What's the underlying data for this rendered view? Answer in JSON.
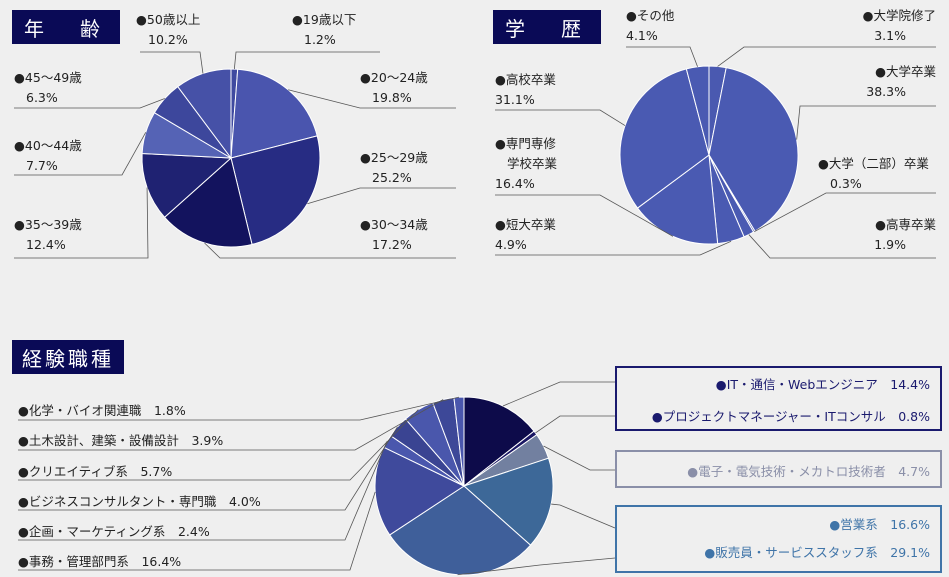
{
  "sections": {
    "age_title": "年　齢",
    "edu_title": "学　歴",
    "job_title": "経験職種"
  },
  "chart_data": [
    {
      "type": "pie",
      "title": "年　齢",
      "slices": [
        {
          "label": "19歳以下",
          "value": 1.2,
          "value_text": "1.2%",
          "color": "#3f4aa0"
        },
        {
          "label": "20〜24歳",
          "value": 19.8,
          "value_text": "19.8%",
          "color": "#4a55ae"
        },
        {
          "label": "25〜29歳",
          "value": 25.2,
          "value_text": "25.2%",
          "color": "#272c83"
        },
        {
          "label": "30〜34歳",
          "value": 17.2,
          "value_text": "17.2%",
          "color": "#13135e"
        },
        {
          "label": "35〜39歳",
          "value": 12.4,
          "value_text": "12.4%",
          "color": "#1f2272"
        },
        {
          "label": "40〜44歳",
          "value": 7.7,
          "value_text": "7.7%",
          "color": "#5563b5"
        },
        {
          "label": "45〜49歳",
          "value": 6.3,
          "value_text": "6.3%",
          "color": "#3d479c"
        },
        {
          "label": "50歳以上",
          "value": 10.2,
          "value_text": "10.2%",
          "color": "#4651a7"
        }
      ]
    },
    {
      "type": "pie",
      "title": "学　歴",
      "slices": [
        {
          "label": "大学院修了",
          "value": 3.1,
          "value_text": "3.1%",
          "color": "#4a59b0"
        },
        {
          "label": "大学卒業",
          "value": 38.3,
          "value_text": "38.3%",
          "color": "#4a5ab2"
        },
        {
          "label": "大学（二部）卒業",
          "value": 0.3,
          "value_text": "0.3%",
          "color": "#4a5ab2"
        },
        {
          "label": "高専卒業",
          "value": 1.9,
          "value_text": "1.9%",
          "color": "#4a5ab2"
        },
        {
          "label": "短大卒業",
          "value": 4.9,
          "value_text": "4.9%",
          "color": "#4a5ab2"
        },
        {
          "label": "専門専修\n学校卒業",
          "value": 16.4,
          "value_text": "16.4%",
          "color": "#4a5ab2"
        },
        {
          "label": "高校卒業",
          "value": 31.1,
          "value_text": "31.1%",
          "color": "#4a5ab2"
        },
        {
          "label": "その他",
          "value": 4.1,
          "value_text": "4.1%",
          "color": "#4a5ab2"
        }
      ]
    },
    {
      "type": "pie",
      "title": "経験職種",
      "slices": [
        {
          "label": "IT・通信・Webエンジニア",
          "value": 14.4,
          "value_text": "14.4%",
          "color": "#0d0b4a"
        },
        {
          "label": "プロジェクトマネージャー・ITコンサル",
          "value": 0.8,
          "value_text": "0.8%",
          "color": "#191663"
        },
        {
          "label": "電子・電気技術・メカトロ技術者",
          "value": 4.7,
          "value_text": "4.7%",
          "color": "#7280a0"
        },
        {
          "label": "営業系",
          "value": 16.6,
          "value_text": "16.6%",
          "color": "#3d6898"
        },
        {
          "label": "販売員・サービススタッフ系",
          "value": 29.1,
          "value_text": "29.1%",
          "color": "#3f5f9a"
        },
        {
          "label": "事務・管理部門系",
          "value": 16.4,
          "value_text": "16.4%",
          "color": "#3f4a9c"
        },
        {
          "label": "企画・マーケティング系",
          "value": 2.4,
          "value_text": "2.4%",
          "color": "#4a57ad"
        },
        {
          "label": "ビジネスコンサルタント・専門職",
          "value": 4.0,
          "value_text": "4.0%",
          "color": "#3a4492"
        },
        {
          "label": "クリエイティブ系",
          "value": 5.7,
          "value_text": "5.7%",
          "color": "#4a57ac"
        },
        {
          "label": "土木設計、建築・設備設計",
          "value": 3.9,
          "value_text": "3.9%",
          "color": "#3d4898"
        },
        {
          "label": "化学・バイオ関連職",
          "value": 1.8,
          "value_text": "1.8%",
          "color": "#4a57ad"
        }
      ]
    }
  ],
  "colors": {
    "title_bg": "#0a0a56",
    "box_navy": "#1a1a6e",
    "box_gray": "#8a8fa8",
    "box_blue": "#3f74a8",
    "bullet_gray": "#8a8fa8",
    "bullet_blue": "#3f74a8"
  }
}
